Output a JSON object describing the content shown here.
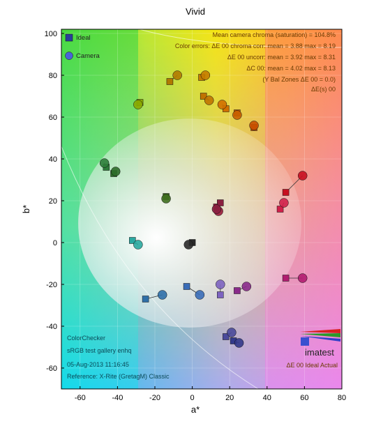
{
  "chart_data": {
    "type": "scatter",
    "title": "Vivid",
    "xlabel": "a*",
    "ylabel": "b*",
    "xlim": [
      -70,
      80
    ],
    "ylim": [
      -70,
      102
    ],
    "xticks": [
      -60,
      -40,
      -20,
      0,
      20,
      40,
      60,
      80
    ],
    "yticks": [
      -60,
      -40,
      -20,
      0,
      20,
      40,
      60,
      80,
      100
    ],
    "xtick_labels": [
      "-60",
      "-40",
      "-20",
      "0",
      "20",
      "40",
      "60",
      "80"
    ],
    "ytick_labels": [
      "-60",
      "-40",
      "-20",
      "0",
      "20",
      "40",
      "60",
      "80",
      "100"
    ],
    "legend": {
      "position": "top-left",
      "ideal_label": "Ideal",
      "camera_label": "Camera"
    },
    "stats": [
      "Mean camera chroma (saturation) = 104.8%",
      "Color errors: ΔE 00 chroma corr: mean = 3.88   max = 8.19",
      "ΔE 00 uncorr: mean = 3.92   max = 8.31",
      "ΔC 00: mean = 4.02   max = 8.13",
      "(Y Bal Zones ΔE 00 = 0.0)",
      "ΔE(s) 00"
    ],
    "info": [
      "ColorChecker",
      "sRGB test gallery enhq",
      "05-Aug-2013 11:16:45",
      "Reference: X-Rite (GretagM) Classic"
    ],
    "footer_right": "ΔE 00 Ideal  Actual",
    "brand": "imatest",
    "pairs": [
      {
        "ideal": [
          -12,
          77
        ],
        "camera": [
          -8,
          80
        ]
      },
      {
        "ideal": [
          5,
          79
        ],
        "camera": [
          7,
          80
        ]
      },
      {
        "ideal": [
          6,
          70
        ],
        "camera": [
          9,
          68
        ]
      },
      {
        "ideal": [
          18,
          64
        ],
        "camera": [
          16,
          66
        ]
      },
      {
        "ideal": [
          24,
          62
        ],
        "camera": [
          24,
          61
        ]
      },
      {
        "ideal": [
          33,
          55
        ],
        "camera": [
          33,
          56
        ]
      },
      {
        "ideal": [
          -28,
          67
        ],
        "camera": [
          -29,
          66
        ]
      },
      {
        "ideal": [
          -46,
          36
        ],
        "camera": [
          -47,
          38
        ]
      },
      {
        "ideal": [
          -42,
          33
        ],
        "camera": [
          -41,
          34
        ]
      },
      {
        "ideal": [
          -14,
          22
        ],
        "camera": [
          -14,
          21
        ]
      },
      {
        "ideal": [
          13,
          17
        ],
        "camera": [
          14,
          15
        ]
      },
      {
        "ideal": [
          15,
          19
        ],
        "camera": [
          13,
          16
        ]
      },
      {
        "ideal": [
          50,
          24
        ],
        "camera": [
          59,
          32
        ]
      },
      {
        "ideal": [
          47,
          16
        ],
        "camera": [
          49,
          19
        ]
      },
      {
        "ideal": [
          -32,
          1
        ],
        "camera": [
          -29,
          -1
        ]
      },
      {
        "ideal": [
          0,
          0
        ],
        "camera": [
          -2,
          -1
        ]
      },
      {
        "ideal": [
          -25,
          -27
        ],
        "camera": [
          -16,
          -25
        ]
      },
      {
        "ideal": [
          -3,
          -21
        ],
        "camera": [
          4,
          -25
        ]
      },
      {
        "ideal": [
          15,
          -25
        ],
        "camera": [
          15,
          -20
        ]
      },
      {
        "ideal": [
          24,
          -23
        ],
        "camera": [
          29,
          -21
        ]
      },
      {
        "ideal": [
          50,
          -17
        ],
        "camera": [
          59,
          -17
        ]
      },
      {
        "ideal": [
          18,
          -45
        ],
        "camera": [
          21,
          -43
        ]
      },
      {
        "ideal": [
          22,
          -47
        ],
        "camera": [
          25,
          -48
        ]
      }
    ],
    "pair_colors": [
      "#b07a00",
      "#c47c00",
      "#c07400",
      "#d07000",
      "#c86000",
      "#c85000",
      "#8aa800",
      "#2e7d3a",
      "#2e6d2a",
      "#3f6f1f",
      "#9a1a3a",
      "#8a2040",
      "#c71020",
      "#d0204a",
      "#2aa8a0",
      "#2a2a2a",
      "#2f6fa8",
      "#3a6db8",
      "#7d63c0",
      "#8a2a8a",
      "#b01d70",
      "#4a4a9a",
      "#333a8a"
    ]
  }
}
